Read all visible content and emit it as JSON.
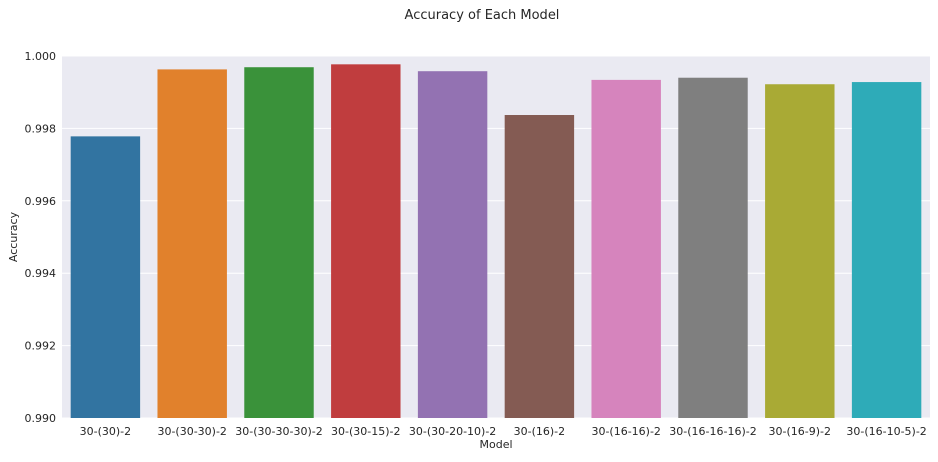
{
  "chart_data": {
    "type": "bar",
    "title": "Accuracy of Each Model",
    "xlabel": "Model",
    "ylabel": "Accuracy",
    "ylim": [
      0.99,
      1.0
    ],
    "yticks": [
      "0.990",
      "0.992",
      "0.994",
      "0.996",
      "0.998",
      "1.000"
    ],
    "grid": true,
    "categories": [
      "30-(30)-2",
      "30-(30-30)-2",
      "30-(30-30-30)-2",
      "30-(30-15)-2",
      "30-(30-20-10)-2",
      "30-(16)-2",
      "30-(16-16)-2",
      "30-(16-16-16)-2",
      "30-(16-9)-2",
      "30-(16-10-5)-2"
    ],
    "values": [
      0.99778,
      0.99963,
      0.99969,
      0.99977,
      0.99958,
      0.99837,
      0.99934,
      0.9994,
      0.99922,
      0.99928
    ],
    "colors": [
      "#3274a1",
      "#e1812c",
      "#3a923a",
      "#c03d3e",
      "#9372b2",
      "#845b53",
      "#d684bd",
      "#7f7f7f",
      "#a9aa35",
      "#2eabb8"
    ],
    "background_color": "#eaeaf2",
    "grid_color": "#ffffff"
  }
}
